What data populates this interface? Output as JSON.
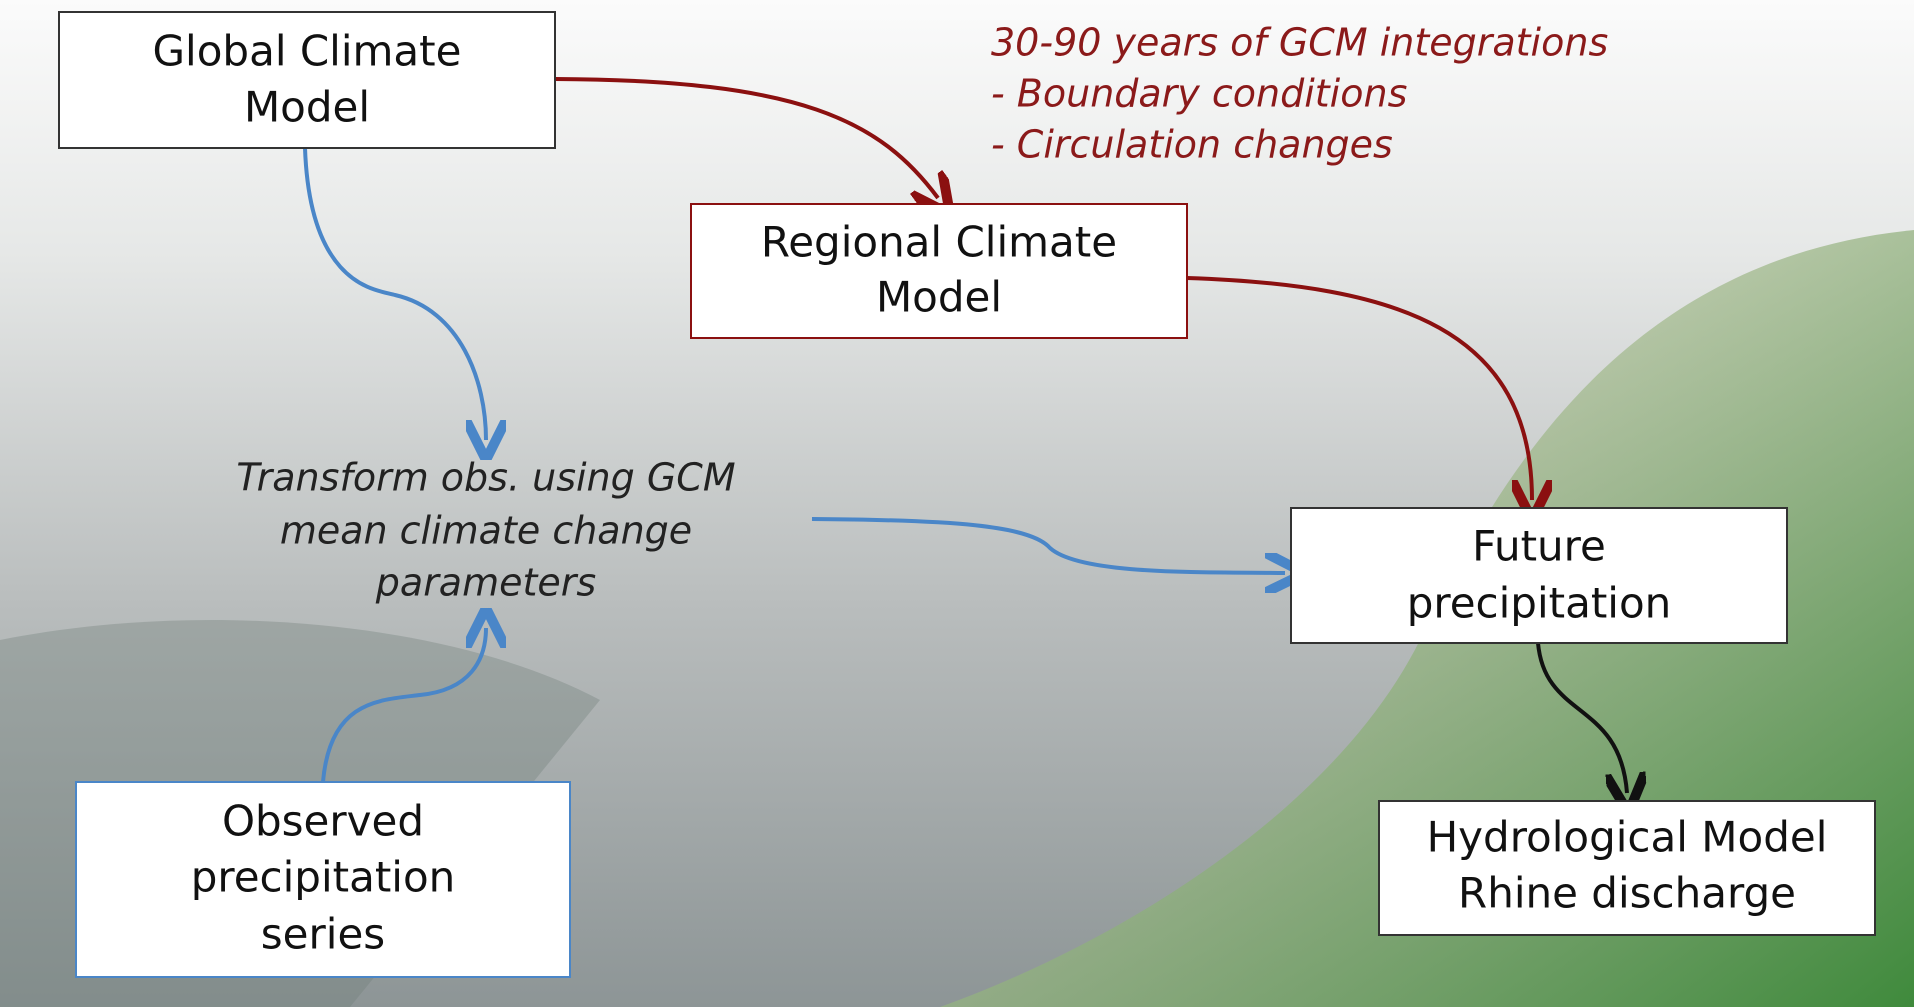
{
  "nodes": [
    {
      "lines": [
        "Global Climate",
        "Model"
      ]
    },
    {
      "lines": [
        "Regional Climate",
        "Model"
      ]
    },
    {
      "lines": [
        "Future",
        "precipitation"
      ]
    },
    {
      "lines": [
        "Hydrological Model",
        "Rhine discharge"
      ]
    },
    {
      "lines": [
        "Observed",
        "precipitation",
        "series"
      ]
    }
  ],
  "annotations": {
    "gcm_note": [
      "30-90 years of GCM integrations",
      "- Boundary conditions",
      "- Circulation changes"
    ],
    "transform": [
      "Transform obs. using GCM",
      "mean climate change",
      "parameters"
    ]
  }
}
